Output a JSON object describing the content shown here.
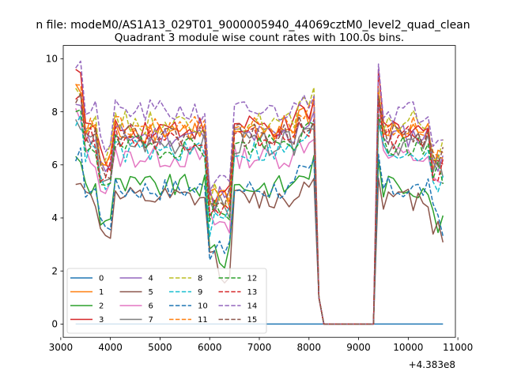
{
  "chart_data": {
    "type": "line",
    "suptitle": "n file: modeM0/AS1A13_029T01_9000005940_44069cztM0_level2_quad_clean",
    "title": "Quadrant 3 module wise count rates with 100.0s bins.",
    "xlabel": "",
    "ylabel": "",
    "offset_text": "+4.383e8",
    "xlim": [
      3050,
      10950
    ],
    "ylim": [
      -0.5,
      10.5
    ],
    "xticks": [
      3000,
      4000,
      5000,
      6000,
      7000,
      8000,
      9000,
      10000,
      11000
    ],
    "yticks": [
      0,
      2,
      4,
      6,
      8,
      10
    ],
    "grid": false,
    "legend_position": "lower-left",
    "legend_columns": 4,
    "segments": [
      {
        "x0": 3300,
        "x1": 8100,
        "dx": 100
      },
      {
        "x0": 8200,
        "x1": 9300,
        "dx": 100
      },
      {
        "x0": 9300,
        "x1": 10700,
        "dx": 100
      }
    ],
    "series": [
      {
        "name": "0",
        "color": "#1f77b4",
        "style": "solid",
        "values": [
          0,
          0,
          0,
          0,
          0,
          0,
          0,
          0,
          0,
          0,
          0,
          0,
          0,
          0,
          0,
          0,
          0,
          0,
          0,
          0,
          0,
          0,
          0,
          0,
          0,
          0,
          0,
          0,
          0,
          0,
          0,
          0,
          0,
          0,
          0,
          0,
          0,
          0,
          0,
          0,
          0,
          0,
          0,
          0,
          0,
          0,
          0,
          0,
          0,
          0,
          0,
          0,
          0,
          0,
          0,
          0,
          0,
          0,
          0,
          0,
          0,
          0,
          0,
          0,
          0,
          0,
          0,
          0,
          0,
          0,
          0,
          0,
          0,
          0,
          0
        ]
      },
      {
        "name": "1",
        "color": "#ff7f0e",
        "style": "solid",
        "base": 7.3,
        "spike": 8.8
      },
      {
        "name": "2",
        "color": "#2ca02c",
        "style": "solid",
        "base": 5.2,
        "spike": 6.2
      },
      {
        "name": "3",
        "color": "#d62728",
        "style": "solid",
        "base": 7.4,
        "spike": 9.6
      },
      {
        "name": "4",
        "color": "#9467bd",
        "style": "solid",
        "base": 7.1,
        "spike": 8.4
      },
      {
        "name": "5",
        "color": "#8c564b",
        "style": "solid",
        "base": 4.7,
        "spike": 5.5
      },
      {
        "name": "6",
        "color": "#e377c2",
        "style": "solid",
        "base": 6.3,
        "spike": 7.9
      },
      {
        "name": "7",
        "color": "#7f7f7f",
        "style": "solid",
        "base": 6.8,
        "spike": 7.6
      },
      {
        "name": "8",
        "color": "#bcbd22",
        "style": "dashed",
        "base": 7.6,
        "spike": 8.9
      },
      {
        "name": "9",
        "color": "#17becf",
        "style": "dashed",
        "base": 6.5,
        "spike": 7.6
      },
      {
        "name": "10",
        "color": "#1f77b4",
        "style": "dashed",
        "base": 5.1,
        "spike": 6.4
      },
      {
        "name": "11",
        "color": "#ff7f0e",
        "style": "dashed",
        "base": 7.4,
        "spike": 8.8
      },
      {
        "name": "12",
        "color": "#2ca02c",
        "style": "dashed",
        "base": 6.7,
        "spike": 7.9
      },
      {
        "name": "13",
        "color": "#d62728",
        "style": "dashed",
        "base": 7.0,
        "spike": 8.5
      },
      {
        "name": "14",
        "color": "#9467bd",
        "style": "dashed",
        "base": 8.0,
        "spike": 9.8
      },
      {
        "name": "15",
        "color": "#8c564b",
        "style": "dashed",
        "base": 7.1,
        "spike": 8.6
      }
    ]
  }
}
